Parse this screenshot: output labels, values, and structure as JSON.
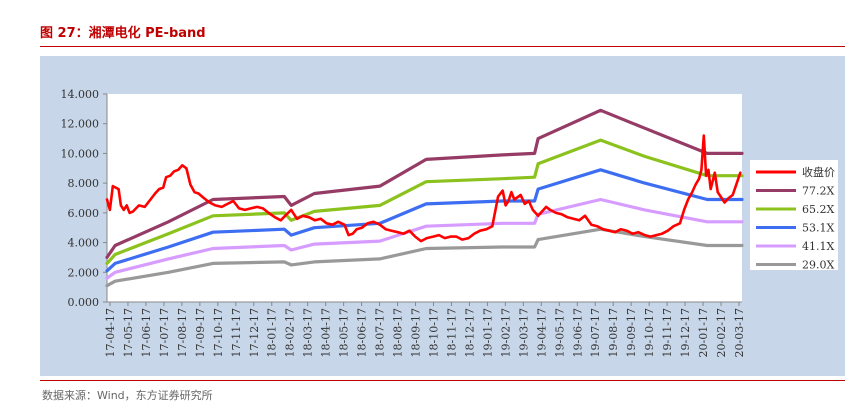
{
  "figure": {
    "title": "图 27：湘潭电化 PE-band",
    "source": "数据来源：Wind，东方证券研究所"
  },
  "colors": {
    "background": "#c7d6e8",
    "plot_area": "#ffffff",
    "price": "#ff0000",
    "b77": "#953b65",
    "b65": "#8cc21e",
    "b53": "#3d6ef2",
    "b41": "#d79cff",
    "b29": "#999999",
    "title": "#c00000"
  },
  "chart_data": {
    "type": "line",
    "title": "",
    "xlabel": "",
    "ylabel": "",
    "ylim": [
      0,
      14
    ],
    "yticks": [
      "14.000",
      "12.000",
      "10.000",
      "8.000",
      "6.000",
      "4.000",
      "2.000",
      "0.000"
    ],
    "xtick_labels": [
      "17-04-17",
      "17-05-17",
      "17-06-17",
      "17-07-17",
      "17-08-17",
      "17-09-17",
      "17-10-17",
      "17-11-17",
      "17-12-17",
      "18-01-17",
      "18-02-17",
      "18-03-17",
      "18-04-17",
      "18-05-17",
      "18-06-17",
      "18-07-17",
      "18-08-17",
      "18-09-17",
      "18-10-17",
      "18-11-17",
      "18-12-17",
      "19-01-17",
      "19-02-17",
      "19-03-17",
      "19-04-17",
      "19-05-17",
      "19-06-17",
      "19-07-17",
      "19-08-17",
      "19-09-17",
      "19-10-17",
      "19-11-17",
      "19-12-17",
      "20-01-17",
      "20-02-17",
      "20-03-17"
    ],
    "x_range": [
      "2017-04-17",
      "2020-04-17"
    ],
    "grid": false,
    "legend_position": "right",
    "series": [
      {
        "key": "price",
        "name": "收盘价",
        "points": [
          [
            "2017-04-17",
            6.9
          ],
          [
            "2017-04-22",
            6.2
          ],
          [
            "2017-04-27",
            7.8
          ],
          [
            "2017-05-02",
            7.7
          ],
          [
            "2017-05-07",
            7.6
          ],
          [
            "2017-05-11",
            6.5
          ],
          [
            "2017-05-16",
            6.2
          ],
          [
            "2017-05-21",
            6.5
          ],
          [
            "2017-05-26",
            6.0
          ],
          [
            "2017-06-01",
            6.1
          ],
          [
            "2017-06-11",
            6.5
          ],
          [
            "2017-06-21",
            6.4
          ],
          [
            "2017-07-01",
            6.9
          ],
          [
            "2017-07-09",
            7.3
          ],
          [
            "2017-07-16",
            7.6
          ],
          [
            "2017-07-23",
            7.7
          ],
          [
            "2017-07-28",
            8.4
          ],
          [
            "2017-08-04",
            8.5
          ],
          [
            "2017-08-11",
            8.8
          ],
          [
            "2017-08-18",
            8.9
          ],
          [
            "2017-08-25",
            9.2
          ],
          [
            "2017-09-01",
            9.0
          ],
          [
            "2017-09-08",
            7.9
          ],
          [
            "2017-09-15",
            7.4
          ],
          [
            "2017-09-22",
            7.3
          ],
          [
            "2017-10-01",
            7.0
          ],
          [
            "2017-10-11",
            6.7
          ],
          [
            "2017-10-21",
            6.5
          ],
          [
            "2017-11-01",
            6.4
          ],
          [
            "2017-11-11",
            6.6
          ],
          [
            "2017-11-21",
            6.8
          ],
          [
            "2017-12-01",
            6.3
          ],
          [
            "2017-12-11",
            6.2
          ],
          [
            "2017-12-21",
            6.3
          ],
          [
            "2018-01-01",
            6.4
          ],
          [
            "2018-01-11",
            6.3
          ],
          [
            "2018-01-21",
            6.0
          ],
          [
            "2018-02-01",
            5.7
          ],
          [
            "2018-02-11",
            5.5
          ],
          [
            "2018-02-21",
            5.9
          ],
          [
            "2018-03-01",
            6.2
          ],
          [
            "2018-03-11",
            5.6
          ],
          [
            "2018-03-21",
            5.8
          ],
          [
            "2018-04-01",
            5.7
          ],
          [
            "2018-04-11",
            5.5
          ],
          [
            "2018-04-21",
            5.6
          ],
          [
            "2018-05-01",
            5.3
          ],
          [
            "2018-05-11",
            5.2
          ],
          [
            "2018-05-21",
            5.4
          ],
          [
            "2018-06-01",
            5.2
          ],
          [
            "2018-06-08",
            4.5
          ],
          [
            "2018-06-15",
            4.6
          ],
          [
            "2018-06-22",
            4.9
          ],
          [
            "2018-07-01",
            5.0
          ],
          [
            "2018-07-11",
            5.3
          ],
          [
            "2018-07-21",
            5.4
          ],
          [
            "2018-08-01",
            5.2
          ],
          [
            "2018-08-11",
            4.9
          ],
          [
            "2018-08-21",
            4.8
          ],
          [
            "2018-09-01",
            4.7
          ],
          [
            "2018-09-11",
            4.6
          ],
          [
            "2018-09-21",
            4.8
          ],
          [
            "2018-10-01",
            4.4
          ],
          [
            "2018-10-11",
            4.1
          ],
          [
            "2018-10-21",
            4.3
          ],
          [
            "2018-11-01",
            4.4
          ],
          [
            "2018-11-11",
            4.5
          ],
          [
            "2018-11-21",
            4.3
          ],
          [
            "2018-12-01",
            4.4
          ],
          [
            "2018-12-11",
            4.4
          ],
          [
            "2018-12-21",
            4.2
          ],
          [
            "2019-01-01",
            4.3
          ],
          [
            "2019-01-11",
            4.6
          ],
          [
            "2019-01-21",
            4.8
          ],
          [
            "2019-02-01",
            4.9
          ],
          [
            "2019-02-11",
            5.1
          ],
          [
            "2019-02-21",
            7.1
          ],
          [
            "2019-03-01",
            7.5
          ],
          [
            "2019-03-06",
            6.5
          ],
          [
            "2019-03-11",
            6.8
          ],
          [
            "2019-03-16",
            7.4
          ],
          [
            "2019-03-21",
            6.9
          ],
          [
            "2019-04-01",
            7.2
          ],
          [
            "2019-04-08",
            6.6
          ],
          [
            "2019-04-15",
            6.8
          ],
          [
            "2019-04-22",
            6.2
          ],
          [
            "2019-05-01",
            5.8
          ],
          [
            "2019-05-08",
            6.1
          ],
          [
            "2019-05-15",
            6.4
          ],
          [
            "2019-05-22",
            6.2
          ],
          [
            "2019-06-01",
            6.0
          ],
          [
            "2019-06-11",
            5.9
          ],
          [
            "2019-06-21",
            5.7
          ],
          [
            "2019-07-01",
            5.6
          ],
          [
            "2019-07-11",
            5.5
          ],
          [
            "2019-07-21",
            5.8
          ],
          [
            "2019-08-01",
            5.2
          ],
          [
            "2019-08-11",
            5.1
          ],
          [
            "2019-08-21",
            4.9
          ],
          [
            "2019-09-01",
            4.8
          ],
          [
            "2019-09-11",
            4.7
          ],
          [
            "2019-09-21",
            4.9
          ],
          [
            "2019-10-01",
            4.8
          ],
          [
            "2019-10-11",
            4.6
          ],
          [
            "2019-10-21",
            4.7
          ],
          [
            "2019-11-01",
            4.5
          ],
          [
            "2019-11-11",
            4.4
          ],
          [
            "2019-11-21",
            4.5
          ],
          [
            "2019-12-01",
            4.6
          ],
          [
            "2019-12-11",
            4.8
          ],
          [
            "2019-12-21",
            5.1
          ],
          [
            "2020-01-01",
            5.3
          ],
          [
            "2020-01-08",
            6.2
          ],
          [
            "2020-01-15",
            6.9
          ],
          [
            "2020-01-22",
            7.4
          ],
          [
            "2020-01-28",
            7.9
          ],
          [
            "2020-02-03",
            8.3
          ],
          [
            "2020-02-07",
            8.9
          ],
          [
            "2020-02-11",
            11.2
          ],
          [
            "2020-02-15",
            8.5
          ],
          [
            "2020-02-19",
            8.9
          ],
          [
            "2020-02-23",
            7.6
          ],
          [
            "2020-03-01",
            8.7
          ],
          [
            "2020-03-06",
            7.4
          ],
          [
            "2020-03-11",
            7.1
          ],
          [
            "2020-03-18",
            6.7
          ],
          [
            "2020-03-25",
            7.0
          ],
          [
            "2020-04-01",
            7.2
          ],
          [
            "2020-04-08",
            8.0
          ],
          [
            "2020-04-14",
            8.7
          ]
        ]
      },
      {
        "key": "b77",
        "name": "77.2X",
        "points": [
          [
            "2017-04-17",
            3.0
          ],
          [
            "2017-05-01",
            3.8
          ],
          [
            "2017-08-01",
            5.4
          ],
          [
            "2017-10-17",
            6.9
          ],
          [
            "2018-02-17",
            7.1
          ],
          [
            "2018-03-01",
            6.5
          ],
          [
            "2018-04-10",
            7.3
          ],
          [
            "2018-08-01",
            7.8
          ],
          [
            "2018-10-20",
            9.6
          ],
          [
            "2019-03-01",
            9.9
          ],
          [
            "2019-04-25",
            10.0
          ],
          [
            "2019-05-01",
            11.0
          ],
          [
            "2019-08-17",
            12.9
          ],
          [
            "2019-11-01",
            11.7
          ],
          [
            "2020-02-17",
            10.0
          ],
          [
            "2020-04-17",
            10.0
          ]
        ]
      },
      {
        "key": "b65",
        "name": "65.2X",
        "points": [
          [
            "2017-04-17",
            2.6
          ],
          [
            "2017-05-01",
            3.2
          ],
          [
            "2017-08-01",
            4.6
          ],
          [
            "2017-10-17",
            5.8
          ],
          [
            "2018-02-17",
            6.0
          ],
          [
            "2018-03-01",
            5.5
          ],
          [
            "2018-04-10",
            6.1
          ],
          [
            "2018-08-01",
            6.5
          ],
          [
            "2018-10-20",
            8.1
          ],
          [
            "2019-03-01",
            8.3
          ],
          [
            "2019-04-25",
            8.4
          ],
          [
            "2019-05-01",
            9.3
          ],
          [
            "2019-08-17",
            10.9
          ],
          [
            "2019-11-01",
            9.8
          ],
          [
            "2020-02-17",
            8.5
          ],
          [
            "2020-04-17",
            8.5
          ]
        ]
      },
      {
        "key": "b53",
        "name": "53.1X",
        "points": [
          [
            "2017-04-17",
            2.1
          ],
          [
            "2017-05-01",
            2.6
          ],
          [
            "2017-08-01",
            3.7
          ],
          [
            "2017-10-17",
            4.7
          ],
          [
            "2018-02-17",
            4.9
          ],
          [
            "2018-03-01",
            4.5
          ],
          [
            "2018-04-10",
            5.0
          ],
          [
            "2018-08-01",
            5.3
          ],
          [
            "2018-10-20",
            6.6
          ],
          [
            "2019-03-01",
            6.8
          ],
          [
            "2019-04-25",
            6.8
          ],
          [
            "2019-05-01",
            7.6
          ],
          [
            "2019-08-17",
            8.9
          ],
          [
            "2019-11-01",
            8.0
          ],
          [
            "2020-02-17",
            6.9
          ],
          [
            "2020-04-17",
            6.9
          ]
        ]
      },
      {
        "key": "b41",
        "name": "41.1X",
        "points": [
          [
            "2017-04-17",
            1.6
          ],
          [
            "2017-05-01",
            2.0
          ],
          [
            "2017-08-01",
            2.9
          ],
          [
            "2017-10-17",
            3.6
          ],
          [
            "2018-02-17",
            3.8
          ],
          [
            "2018-03-01",
            3.5
          ],
          [
            "2018-04-10",
            3.9
          ],
          [
            "2018-08-01",
            4.1
          ],
          [
            "2018-10-20",
            5.1
          ],
          [
            "2019-03-01",
            5.3
          ],
          [
            "2019-04-25",
            5.3
          ],
          [
            "2019-05-01",
            5.9
          ],
          [
            "2019-08-17",
            6.9
          ],
          [
            "2019-11-01",
            6.2
          ],
          [
            "2020-02-17",
            5.4
          ],
          [
            "2020-04-17",
            5.4
          ]
        ]
      },
      {
        "key": "b29",
        "name": "29.0X",
        "points": [
          [
            "2017-04-17",
            1.1
          ],
          [
            "2017-05-01",
            1.4
          ],
          [
            "2017-08-01",
            2.0
          ],
          [
            "2017-10-17",
            2.6
          ],
          [
            "2018-02-17",
            2.7
          ],
          [
            "2018-03-01",
            2.5
          ],
          [
            "2018-04-10",
            2.7
          ],
          [
            "2018-08-01",
            2.9
          ],
          [
            "2018-10-20",
            3.6
          ],
          [
            "2019-03-01",
            3.7
          ],
          [
            "2019-04-25",
            3.7
          ],
          [
            "2019-05-01",
            4.2
          ],
          [
            "2019-08-17",
            4.9
          ],
          [
            "2019-11-01",
            4.4
          ],
          [
            "2020-02-17",
            3.8
          ],
          [
            "2020-04-17",
            3.8
          ]
        ]
      }
    ]
  }
}
